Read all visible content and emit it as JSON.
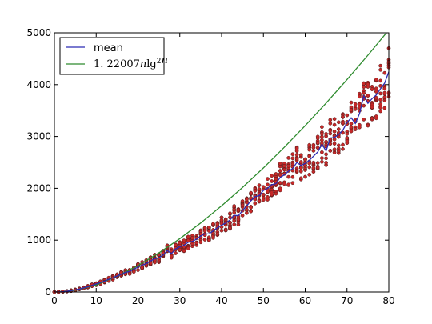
{
  "chart_data": {
    "type": "scatter",
    "title": "",
    "xlabel": "",
    "ylabel": "",
    "xlim": [
      0,
      80
    ],
    "ylim": [
      0,
      5000
    ],
    "x_ticks": [
      "0",
      "10",
      "20",
      "30",
      "40",
      "50",
      "60",
      "70",
      "80"
    ],
    "y_ticks": [
      "0",
      "1000",
      "2000",
      "3000",
      "4000",
      "5000"
    ],
    "grid": false,
    "legend_position": "top-left",
    "legend": [
      {
        "label": "mean",
        "color": "#2b2bb5"
      },
      {
        "label": "1.22007nlg²n",
        "color": "#2e8b2e"
      }
    ],
    "series": [
      {
        "name": "mean",
        "type": "line",
        "color": "#2b2bb5",
        "x": [
          0,
          1,
          2,
          3,
          4,
          5,
          6,
          7,
          8,
          9,
          10,
          11,
          12,
          13,
          14,
          15,
          16,
          17,
          18,
          19,
          20,
          21,
          22,
          23,
          24,
          25,
          26,
          27,
          28,
          29,
          30,
          31,
          32,
          33,
          34,
          35,
          36,
          37,
          38,
          39,
          40,
          41,
          42,
          43,
          44,
          45,
          46,
          47,
          48,
          49,
          50,
          51,
          52,
          53,
          54,
          55,
          56,
          57,
          58,
          59,
          60,
          61,
          62,
          63,
          64,
          65,
          66,
          67,
          68,
          69,
          70,
          71,
          72,
          73,
          74,
          75,
          76,
          77,
          78,
          79,
          80
        ],
        "y": [
          0,
          2,
          6,
          14,
          26,
          40,
          58,
          78,
          101,
          128,
          156,
          182,
          212,
          246,
          274,
          308,
          342,
          378,
          398,
          438,
          482,
          520,
          546,
          598,
          640,
          660,
          712,
          800,
          740,
          830,
          874,
          900,
          960,
          975,
          1020,
          1080,
          1120,
          1120,
          1180,
          1240,
          1290,
          1330,
          1390,
          1480,
          1470,
          1570,
          1660,
          1760,
          1840,
          1860,
          1960,
          2000,
          2070,
          2090,
          2210,
          2260,
          2330,
          2380,
          2500,
          2440,
          2480,
          2540,
          2620,
          2700,
          2850,
          2720,
          2970,
          2980,
          3040,
          3120,
          3270,
          3360,
          3250,
          3440,
          3780,
          3640,
          3730,
          3800,
          3920,
          4030,
          4250
        ]
      },
      {
        "name": "1.22007nlg²n",
        "type": "line",
        "color": "#2e8b2e",
        "x": [
          2,
          5,
          10,
          15,
          20,
          25,
          30,
          35,
          40,
          45,
          50,
          55,
          60,
          65,
          70,
          75,
          80
        ],
        "y": [
          2.4,
          32.9,
          135,
          305,
          511,
          753,
          1029,
          1332,
          1662,
          2016,
          2393,
          2791,
          3208,
          3644,
          4098,
          4568,
          5054
        ]
      }
    ],
    "scatter_color": "#c62828",
    "scatter_edge": "#4a1a1a",
    "scatter_samples_per_x": 10
  }
}
